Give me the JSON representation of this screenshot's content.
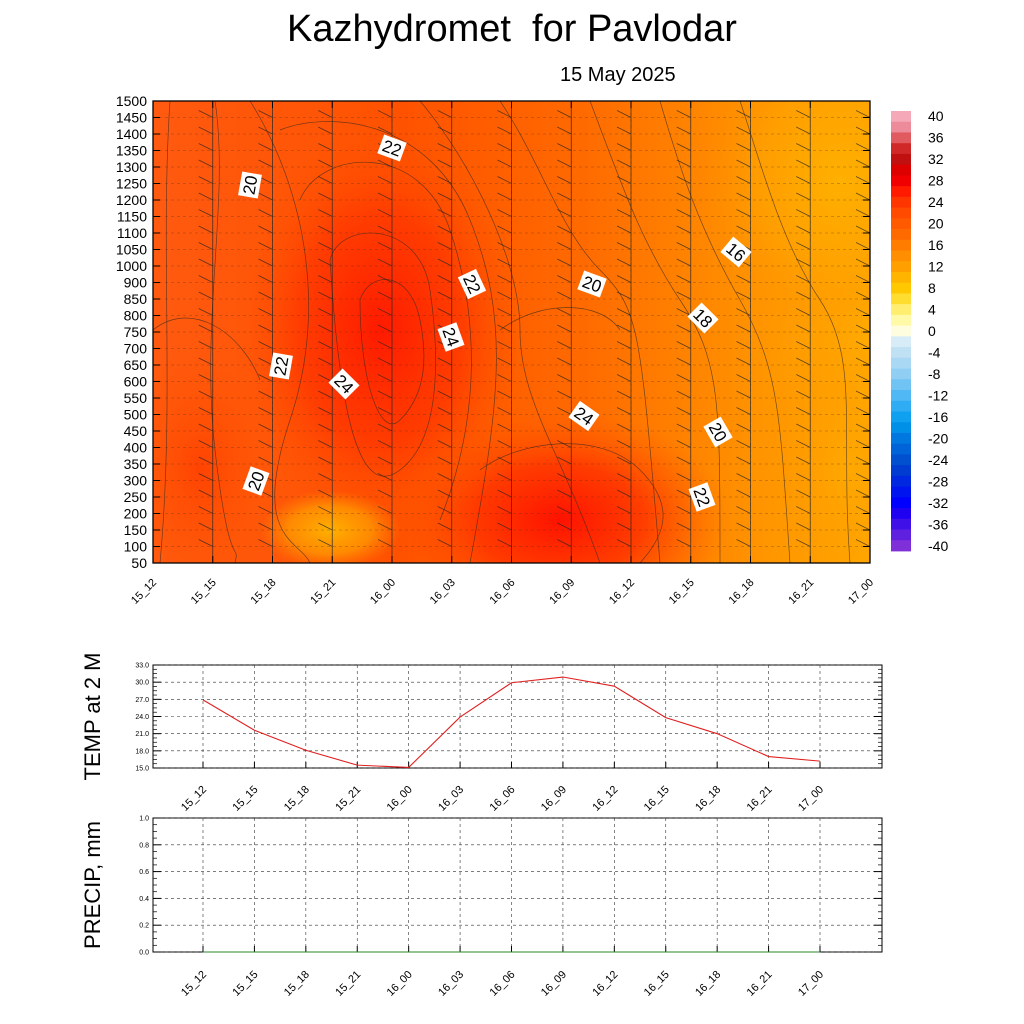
{
  "header": {
    "title": "Kazhydromet  for Pavlodar",
    "date": "15 May 2025"
  },
  "colorbar": {
    "labels": [
      "40",
      "36",
      "32",
      "28",
      "24",
      "20",
      "16",
      "12",
      "8",
      "4",
      "0",
      "-4",
      "-8",
      "-12",
      "-16",
      "-20",
      "-24",
      "-28",
      "-32",
      "-36",
      "-40"
    ]
  },
  "chart_data": [
    {
      "type": "heatmap",
      "title": "",
      "x_categories": [
        "15_12",
        "15_15",
        "15_18",
        "15_21",
        "16_00",
        "16_03",
        "16_06",
        "16_09",
        "16_12",
        "16_15",
        "16_18",
        "16_21",
        "17_00"
      ],
      "y_levels": [
        "1500",
        "1450",
        "1400",
        "1350",
        "1300",
        "1250",
        "1200",
        "1150",
        "1100",
        "1050",
        "1000",
        "900",
        "850",
        "800",
        "750",
        "700",
        "650",
        "600",
        "550",
        "500",
        "450",
        "400",
        "350",
        "300",
        "250",
        "200",
        "150",
        "100",
        "50"
      ],
      "contour_labels": [
        {
          "value": "22"
        },
        {
          "value": "20"
        },
        {
          "value": "22"
        },
        {
          "value": "20"
        },
        {
          "value": "16"
        },
        {
          "value": "18"
        },
        {
          "value": "24"
        },
        {
          "value": "22"
        },
        {
          "value": "24"
        },
        {
          "value": "24"
        },
        {
          "value": "20"
        },
        {
          "value": "20"
        },
        {
          "value": "22"
        }
      ],
      "colorscale_range": [
        -40,
        40
      ],
      "grid": true
    },
    {
      "type": "line",
      "ylabel": "TEMP at 2 M",
      "categories": [
        "15_12",
        "15_15",
        "15_18",
        "15_21",
        "16_00",
        "16_03",
        "16_06",
        "16_09",
        "16_12",
        "16_15",
        "16_18",
        "16_21",
        "17_00"
      ],
      "series": [
        {
          "values": [
            26.9,
            21.6,
            18.1,
            15.5,
            15.1,
            23.9,
            29.9,
            30.9,
            29.3,
            23.8,
            21.0,
            17.0,
            16.2
          ],
          "color": "#e02020"
        }
      ],
      "ylim": [
        15.0,
        33.0
      ],
      "ytick_labels": [
        "33.0",
        "30.0",
        "27.0",
        "24.0",
        "21.0",
        "18.0",
        "15.0"
      ],
      "grid": true
    },
    {
      "type": "line",
      "ylabel": "PRECIP, mm",
      "categories": [
        "15_12",
        "15_15",
        "15_18",
        "15_21",
        "16_00",
        "16_03",
        "16_06",
        "16_09",
        "16_12",
        "16_15",
        "16_18",
        "16_21",
        "17_00"
      ],
      "series": [
        {
          "values": [
            0,
            0,
            0,
            0,
            0,
            0,
            0,
            0,
            0,
            0,
            0,
            0,
            0
          ],
          "color": "#2a8a2a"
        }
      ],
      "ylim": [
        0.0,
        1.0
      ],
      "ytick_labels": [
        "1.0",
        "0.8",
        "0.6",
        "0.4",
        "0.2",
        "0.0"
      ],
      "grid": true
    }
  ]
}
